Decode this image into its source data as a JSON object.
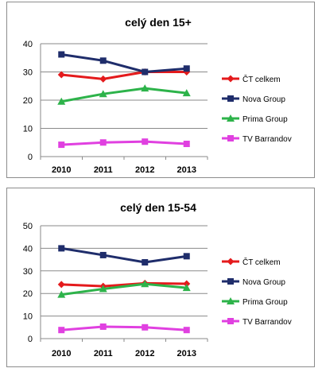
{
  "chart_data": [
    {
      "type": "line",
      "title": "celý den 15+",
      "x": [
        "2010",
        "2011",
        "2012",
        "2013"
      ],
      "ylim": [
        0,
        40
      ],
      "yticks": [
        0,
        10,
        20,
        30,
        40
      ],
      "grid": true,
      "legend": "right",
      "series": [
        {
          "name": "ČT celkem",
          "values": [
            29.0,
            27.5,
            30.0,
            30.0
          ],
          "color": "#e41a1c",
          "marker": "diamond"
        },
        {
          "name": "Nova Group",
          "values": [
            36.2,
            34.0,
            30.0,
            31.2
          ],
          "color": "#1f2d6b",
          "marker": "square"
        },
        {
          "name": "Prima Group",
          "values": [
            19.5,
            22.2,
            24.2,
            22.5
          ],
          "color": "#2db34a",
          "marker": "triangle"
        },
        {
          "name": "TV Barrandov",
          "values": [
            4.2,
            5.0,
            5.3,
            4.5
          ],
          "color": "#e040e0",
          "marker": "square"
        }
      ]
    },
    {
      "type": "line",
      "title": "celý den 15-54",
      "x": [
        "2010",
        "2011",
        "2012",
        "2013"
      ],
      "ylim": [
        0,
        50
      ],
      "yticks": [
        0,
        10,
        20,
        30,
        40,
        50
      ],
      "grid": true,
      "legend": "right",
      "series": [
        {
          "name": "ČT celkem",
          "values": [
            24.0,
            23.2,
            24.5,
            24.3
          ],
          "color": "#e41a1c",
          "marker": "diamond"
        },
        {
          "name": "Nova Group",
          "values": [
            40.0,
            37.0,
            33.8,
            36.5
          ],
          "color": "#1f2d6b",
          "marker": "square"
        },
        {
          "name": "Prima Group",
          "values": [
            19.5,
            22.0,
            24.2,
            22.5
          ],
          "color": "#2db34a",
          "marker": "triangle"
        },
        {
          "name": "TV Barrandov",
          "values": [
            3.8,
            5.3,
            5.0,
            3.8
          ],
          "color": "#e040e0",
          "marker": "square"
        }
      ]
    }
  ]
}
